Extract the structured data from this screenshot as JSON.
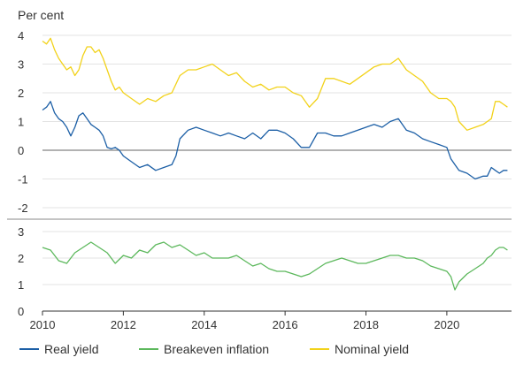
{
  "chart_data": [
    {
      "type": "line",
      "unit_label": "Per cent",
      "ylim": [
        -2,
        4
      ],
      "yticks": [
        "4",
        "3",
        "2",
        "1",
        "0",
        "-1",
        "-2"
      ],
      "yticks_values": [
        4,
        3,
        2,
        1,
        0,
        -1,
        -2
      ],
      "xlim": [
        2010,
        2021.6
      ],
      "grid": true,
      "series": [
        {
          "name": "Nominal yield",
          "color": "#f2d21a",
          "x": [
            2010.0,
            2010.1,
            2010.2,
            2010.3,
            2010.4,
            2010.5,
            2010.6,
            2010.7,
            2010.8,
            2010.9,
            2011.0,
            2011.1,
            2011.2,
            2011.3,
            2011.4,
            2011.5,
            2011.6,
            2011.7,
            2011.8,
            2011.9,
            2012.0,
            2012.2,
            2012.4,
            2012.6,
            2012.8,
            2013.0,
            2013.2,
            2013.4,
            2013.6,
            2013.8,
            2014.0,
            2014.2,
            2014.4,
            2014.6,
            2014.8,
            2015.0,
            2015.2,
            2015.4,
            2015.6,
            2015.8,
            2016.0,
            2016.2,
            2016.4,
            2016.6,
            2016.8,
            2017.0,
            2017.2,
            2017.4,
            2017.6,
            2017.8,
            2018.0,
            2018.2,
            2018.4,
            2018.6,
            2018.8,
            2019.0,
            2019.2,
            2019.4,
            2019.6,
            2019.8,
            2020.0,
            2020.1,
            2020.2,
            2020.3,
            2020.5,
            2020.7,
            2020.9,
            2021.0,
            2021.1,
            2021.2,
            2021.3,
            2021.4,
            2021.5
          ],
          "values": [
            3.8,
            3.7,
            3.9,
            3.5,
            3.2,
            3.0,
            2.8,
            2.9,
            2.6,
            2.8,
            3.3,
            3.6,
            3.6,
            3.4,
            3.5,
            3.2,
            2.8,
            2.4,
            2.1,
            2.2,
            2.0,
            1.8,
            1.6,
            1.8,
            1.7,
            1.9,
            2.0,
            2.6,
            2.8,
            2.8,
            2.9,
            3.0,
            2.8,
            2.6,
            2.7,
            2.4,
            2.2,
            2.3,
            2.1,
            2.2,
            2.2,
            2.0,
            1.9,
            1.5,
            1.8,
            2.5,
            2.5,
            2.4,
            2.3,
            2.5,
            2.7,
            2.9,
            3.0,
            3.0,
            3.2,
            2.8,
            2.6,
            2.4,
            2.0,
            1.8,
            1.8,
            1.7,
            1.5,
            1.0,
            0.7,
            0.8,
            0.9,
            1.0,
            1.1,
            1.7,
            1.7,
            1.6,
            1.5
          ]
        },
        {
          "name": "Real yield",
          "color": "#1c5fa6",
          "x": [
            2010.0,
            2010.1,
            2010.2,
            2010.3,
            2010.4,
            2010.5,
            2010.6,
            2010.7,
            2010.8,
            2010.9,
            2011.0,
            2011.1,
            2011.2,
            2011.3,
            2011.4,
            2011.5,
            2011.6,
            2011.7,
            2011.8,
            2011.9,
            2012.0,
            2012.2,
            2012.4,
            2012.6,
            2012.8,
            2013.0,
            2013.2,
            2013.3,
            2013.4,
            2013.6,
            2013.8,
            2014.0,
            2014.2,
            2014.4,
            2014.6,
            2014.8,
            2015.0,
            2015.2,
            2015.4,
            2015.6,
            2015.8,
            2016.0,
            2016.2,
            2016.4,
            2016.6,
            2016.8,
            2017.0,
            2017.2,
            2017.4,
            2017.6,
            2017.8,
            2018.0,
            2018.2,
            2018.4,
            2018.6,
            2018.8,
            2019.0,
            2019.2,
            2019.4,
            2019.6,
            2019.8,
            2020.0,
            2020.1,
            2020.2,
            2020.3,
            2020.5,
            2020.7,
            2020.9,
            2021.0,
            2021.1,
            2021.2,
            2021.3,
            2021.4,
            2021.5
          ],
          "values": [
            1.4,
            1.5,
            1.7,
            1.3,
            1.1,
            1.0,
            0.8,
            0.5,
            0.8,
            1.2,
            1.3,
            1.1,
            0.9,
            0.8,
            0.7,
            0.5,
            0.1,
            0.05,
            0.1,
            0.0,
            -0.2,
            -0.4,
            -0.6,
            -0.5,
            -0.7,
            -0.6,
            -0.5,
            -0.2,
            0.4,
            0.7,
            0.8,
            0.7,
            0.6,
            0.5,
            0.6,
            0.5,
            0.4,
            0.6,
            0.4,
            0.7,
            0.7,
            0.6,
            0.4,
            0.1,
            0.1,
            0.6,
            0.6,
            0.5,
            0.5,
            0.6,
            0.7,
            0.8,
            0.9,
            0.8,
            1.0,
            1.1,
            0.7,
            0.6,
            0.4,
            0.3,
            0.2,
            0.1,
            -0.3,
            -0.5,
            -0.7,
            -0.8,
            -1.0,
            -0.9,
            -0.9,
            -0.6,
            -0.7,
            -0.8,
            -0.7,
            -0.7
          ]
        }
      ],
      "zero_line": 0
    },
    {
      "type": "line",
      "ylim": [
        0,
        3
      ],
      "yticks": [
        "3",
        "2",
        "1",
        "0"
      ],
      "yticks_values": [
        3,
        2,
        1,
        0
      ],
      "xlim": [
        2010,
        2021.6
      ],
      "xticks": [
        "2010",
        "2012",
        "2014",
        "2016",
        "2018",
        "2020"
      ],
      "xticks_values": [
        2010,
        2012,
        2014,
        2016,
        2018,
        2020
      ],
      "grid": true,
      "series": [
        {
          "name": "Breakeven inflation",
          "color": "#5cb85c",
          "x": [
            2010.0,
            2010.2,
            2010.4,
            2010.6,
            2010.8,
            2011.0,
            2011.2,
            2011.4,
            2011.6,
            2011.8,
            2012.0,
            2012.2,
            2012.4,
            2012.6,
            2012.8,
            2013.0,
            2013.2,
            2013.4,
            2013.6,
            2013.8,
            2014.0,
            2014.2,
            2014.4,
            2014.6,
            2014.8,
            2015.0,
            2015.2,
            2015.4,
            2015.6,
            2015.8,
            2016.0,
            2016.2,
            2016.4,
            2016.6,
            2016.8,
            2017.0,
            2017.2,
            2017.4,
            2017.6,
            2017.8,
            2018.0,
            2018.2,
            2018.4,
            2018.6,
            2018.8,
            2019.0,
            2019.2,
            2019.4,
            2019.6,
            2019.8,
            2020.0,
            2020.1,
            2020.2,
            2020.3,
            2020.5,
            2020.7,
            2020.9,
            2021.0,
            2021.1,
            2021.2,
            2021.3,
            2021.4,
            2021.5
          ],
          "values": [
            2.4,
            2.3,
            1.9,
            1.8,
            2.2,
            2.4,
            2.6,
            2.4,
            2.2,
            1.8,
            2.1,
            2.0,
            2.3,
            2.2,
            2.5,
            2.6,
            2.4,
            2.5,
            2.3,
            2.1,
            2.2,
            2.0,
            2.0,
            2.0,
            2.1,
            1.9,
            1.7,
            1.8,
            1.6,
            1.5,
            1.5,
            1.4,
            1.3,
            1.4,
            1.6,
            1.8,
            1.9,
            2.0,
            1.9,
            1.8,
            1.8,
            1.9,
            2.0,
            2.1,
            2.1,
            2.0,
            2.0,
            1.9,
            1.7,
            1.6,
            1.5,
            1.3,
            0.8,
            1.1,
            1.4,
            1.6,
            1.8,
            2.0,
            2.1,
            2.3,
            2.4,
            2.4,
            2.3
          ]
        }
      ]
    }
  ],
  "legend": [
    {
      "name": "Real yield",
      "color": "#1c5fa6"
    },
    {
      "name": "Breakeven inflation",
      "color": "#5cb85c"
    },
    {
      "name": "Nominal yield",
      "color": "#f2d21a"
    }
  ]
}
